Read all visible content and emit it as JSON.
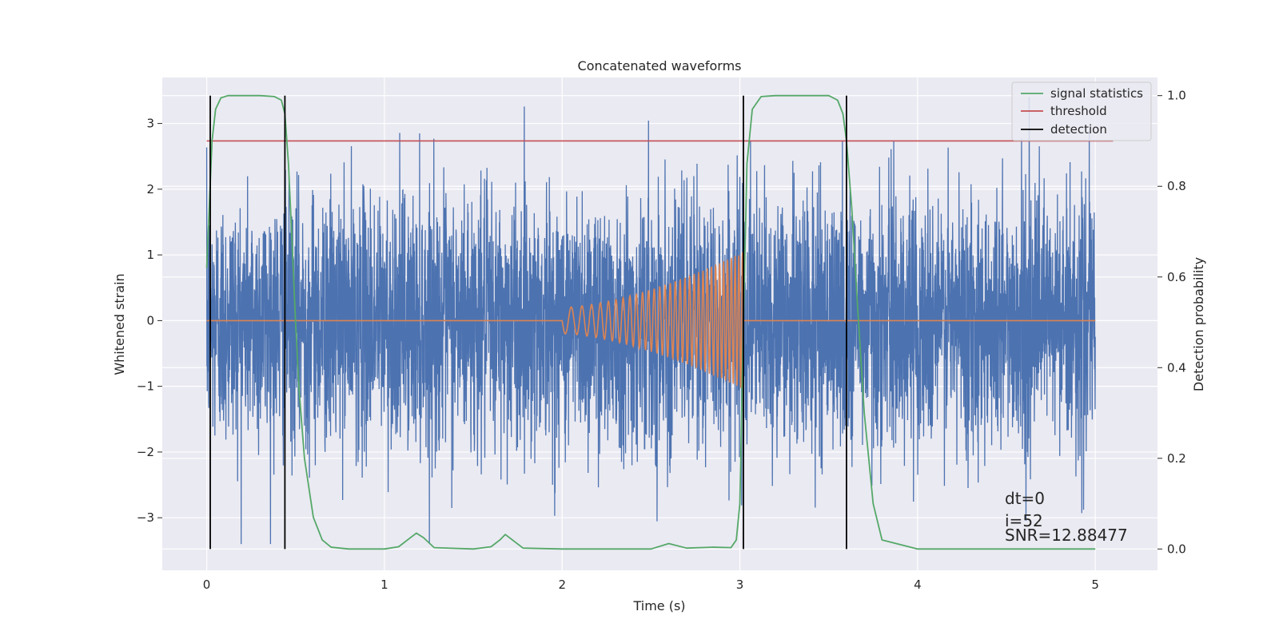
{
  "chart_data": {
    "type": "line",
    "title": "Concatenated waveforms",
    "xlabel": "Time (s)",
    "ylabel": "Whitened strain",
    "y2label": "Detection probability",
    "xlim": [
      -0.25,
      5.35
    ],
    "ylim": [
      -3.8,
      3.7
    ],
    "y2lim": [
      -0.047,
      1.04
    ],
    "xticks": [
      0,
      1,
      2,
      3,
      4,
      5
    ],
    "yticks": [
      -3,
      -2,
      -1,
      0,
      1,
      2,
      3
    ],
    "y2ticks": [
      0.0,
      0.2,
      0.4,
      0.6,
      0.8,
      1.0
    ],
    "xtick_labels": [
      "0",
      "1",
      "2",
      "3",
      "4",
      "5"
    ],
    "ytick_labels": [
      "−3",
      "−2",
      "−1",
      "0",
      "1",
      "2",
      "3"
    ],
    "y2tick_labels": [
      "0.0",
      "0.2",
      "0.4",
      "0.6",
      "0.8",
      "1.0"
    ],
    "grid": true,
    "legend_position": "top-right",
    "colors": {
      "strain": "#4c72b0",
      "injected": "#dd8452",
      "signal": "#55a868",
      "threshold": "#c44e52",
      "detection": "#000000",
      "background": "#eaeaf2",
      "grid": "#ffffff"
    },
    "series": [
      {
        "name": "",
        "role": "whitened strain noise",
        "axis": "left",
        "x_range": [
          0,
          5
        ],
        "amplitude_envelope": 3.4
      },
      {
        "name": "",
        "role": "injected chirp waveform",
        "axis": "left",
        "x_range": [
          0,
          5
        ],
        "chirp_start": 2.0,
        "chirp_end": 3.02,
        "start_amplitude": 0.2,
        "end_amplitude": 1.05
      },
      {
        "name": "signal statistics",
        "axis": "right",
        "x": [
          0.0,
          0.03,
          0.05,
          0.08,
          0.12,
          0.2,
          0.3,
          0.38,
          0.42,
          0.44,
          0.46,
          0.48,
          0.5,
          0.52,
          0.55,
          0.6,
          0.65,
          0.7,
          0.8,
          1.0,
          1.08,
          1.13,
          1.18,
          1.22,
          1.28,
          1.5,
          1.6,
          1.65,
          1.68,
          1.72,
          1.78,
          2.0,
          2.5,
          2.6,
          2.7,
          2.85,
          2.95,
          2.98,
          3.0,
          3.02,
          3.04,
          3.07,
          3.12,
          3.2,
          3.4,
          3.5,
          3.55,
          3.58,
          3.6,
          3.63,
          3.66,
          3.7,
          3.75,
          3.8,
          4.0,
          5.0
        ],
        "y": [
          0.62,
          0.9,
          0.97,
          0.995,
          1.0,
          1.0,
          1.0,
          0.998,
          0.99,
          0.96,
          0.85,
          0.68,
          0.5,
          0.35,
          0.2,
          0.07,
          0.02,
          0.004,
          0.0,
          0.0,
          0.005,
          0.02,
          0.035,
          0.025,
          0.003,
          0.0,
          0.005,
          0.02,
          0.032,
          0.02,
          0.002,
          0.0,
          0.0,
          0.012,
          0.002,
          0.004,
          0.003,
          0.02,
          0.1,
          0.5,
          0.85,
          0.97,
          0.998,
          1.0,
          1.0,
          1.0,
          0.99,
          0.96,
          0.9,
          0.75,
          0.55,
          0.3,
          0.1,
          0.02,
          0.0,
          0.0
        ]
      },
      {
        "name": "threshold",
        "axis": "right",
        "x": [
          0.0,
          5.1
        ],
        "y": [
          0.9,
          0.9
        ]
      },
      {
        "name": "detection",
        "axis": "right",
        "vlines": [
          0.02,
          0.44,
          3.02,
          3.6
        ],
        "ymin": 0.0,
        "ymax": 1.0
      }
    ],
    "annotations": [
      {
        "text": "dt=0",
        "x": 4.5,
        "y": -3.2
      },
      {
        "text": "i=52",
        "x": 4.5,
        "y": -3.55
      },
      {
        "text": "SNR=12.88477",
        "x": 4.5,
        "y": -3.85
      }
    ],
    "legend": [
      "signal statistics",
      "threshold",
      "detection"
    ]
  }
}
